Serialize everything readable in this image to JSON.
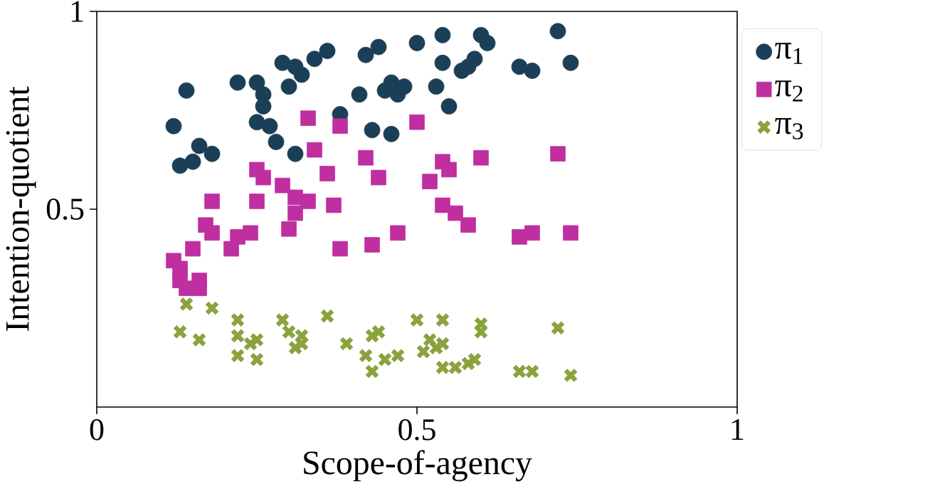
{
  "chart_data": {
    "type": "scatter",
    "xlabel": "Scope-of-agency",
    "ylabel": "Intention-quotient",
    "xlim": [
      0,
      1
    ],
    "ylim": [
      0,
      1
    ],
    "xticks": [
      0,
      0.5,
      1
    ],
    "yticks": [
      0.5,
      1
    ],
    "grid": false,
    "legend": "right",
    "series": [
      {
        "name": "π$_{1}$",
        "color": "#1b3f57",
        "marker": "circle",
        "x": [
          0.14,
          0.22,
          0.25,
          0.26,
          0.26,
          0.25,
          0.27,
          0.28,
          0.12,
          0.16,
          0.13,
          0.18,
          0.15,
          0.29,
          0.31,
          0.32,
          0.3,
          0.34,
          0.36,
          0.38,
          0.31,
          0.41,
          0.42,
          0.44,
          0.43,
          0.46,
          0.45,
          0.46,
          0.47,
          0.48,
          0.5,
          0.53,
          0.54,
          0.54,
          0.55,
          0.57,
          0.58,
          0.59,
          0.6,
          0.61,
          0.66,
          0.68,
          0.72,
          0.74
        ],
        "values": [
          0.8,
          0.82,
          0.82,
          0.79,
          0.76,
          0.72,
          0.71,
          0.67,
          0.71,
          0.66,
          0.61,
          0.64,
          0.62,
          0.87,
          0.86,
          0.84,
          0.81,
          0.88,
          0.9,
          0.74,
          0.64,
          0.79,
          0.89,
          0.91,
          0.7,
          0.69,
          0.8,
          0.82,
          0.79,
          0.81,
          0.92,
          0.81,
          0.94,
          0.87,
          0.76,
          0.85,
          0.86,
          0.88,
          0.94,
          0.92,
          0.86,
          0.85,
          0.95,
          0.87
        ]
      },
      {
        "name": "π$_{2}$",
        "color": "#bf2fa0",
        "marker": "square",
        "x": [
          0.33,
          0.38,
          0.5,
          0.34,
          0.42,
          0.36,
          0.44,
          0.25,
          0.26,
          0.29,
          0.54,
          0.55,
          0.52,
          0.6,
          0.72,
          0.18,
          0.25,
          0.31,
          0.33,
          0.37,
          0.31,
          0.3,
          0.54,
          0.56,
          0.58,
          0.17,
          0.18,
          0.22,
          0.24,
          0.21,
          0.15,
          0.38,
          0.43,
          0.47,
          0.66,
          0.68,
          0.74,
          0.12,
          0.13,
          0.13,
          0.16,
          0.14,
          0.16
        ],
        "values": [
          0.73,
          0.71,
          0.72,
          0.65,
          0.63,
          0.59,
          0.58,
          0.6,
          0.58,
          0.56,
          0.62,
          0.6,
          0.57,
          0.63,
          0.64,
          0.52,
          0.52,
          0.53,
          0.52,
          0.51,
          0.49,
          0.45,
          0.51,
          0.49,
          0.46,
          0.46,
          0.44,
          0.43,
          0.44,
          0.4,
          0.4,
          0.4,
          0.41,
          0.44,
          0.43,
          0.44,
          0.44,
          0.37,
          0.35,
          0.32,
          0.32,
          0.3,
          0.3
        ]
      },
      {
        "name": "π$_{3}$",
        "color": "#8aa33e",
        "marker": "cross",
        "x": [
          0.14,
          0.18,
          0.13,
          0.16,
          0.22,
          0.22,
          0.25,
          0.24,
          0.22,
          0.25,
          0.29,
          0.3,
          0.32,
          0.32,
          0.31,
          0.36,
          0.39,
          0.43,
          0.44,
          0.42,
          0.43,
          0.45,
          0.47,
          0.5,
          0.54,
          0.52,
          0.53,
          0.54,
          0.54,
          0.56,
          0.58,
          0.59,
          0.6,
          0.6,
          0.66,
          0.68,
          0.72,
          0.74,
          0.51
        ],
        "values": [
          0.26,
          0.25,
          0.19,
          0.17,
          0.22,
          0.18,
          0.17,
          0.16,
          0.13,
          0.12,
          0.22,
          0.19,
          0.18,
          0.16,
          0.15,
          0.23,
          0.16,
          0.18,
          0.19,
          0.13,
          0.09,
          0.12,
          0.13,
          0.22,
          0.22,
          0.17,
          0.15,
          0.16,
          0.1,
          0.1,
          0.11,
          0.12,
          0.21,
          0.19,
          0.09,
          0.09,
          0.2,
          0.08,
          0.14
        ]
      }
    ]
  }
}
